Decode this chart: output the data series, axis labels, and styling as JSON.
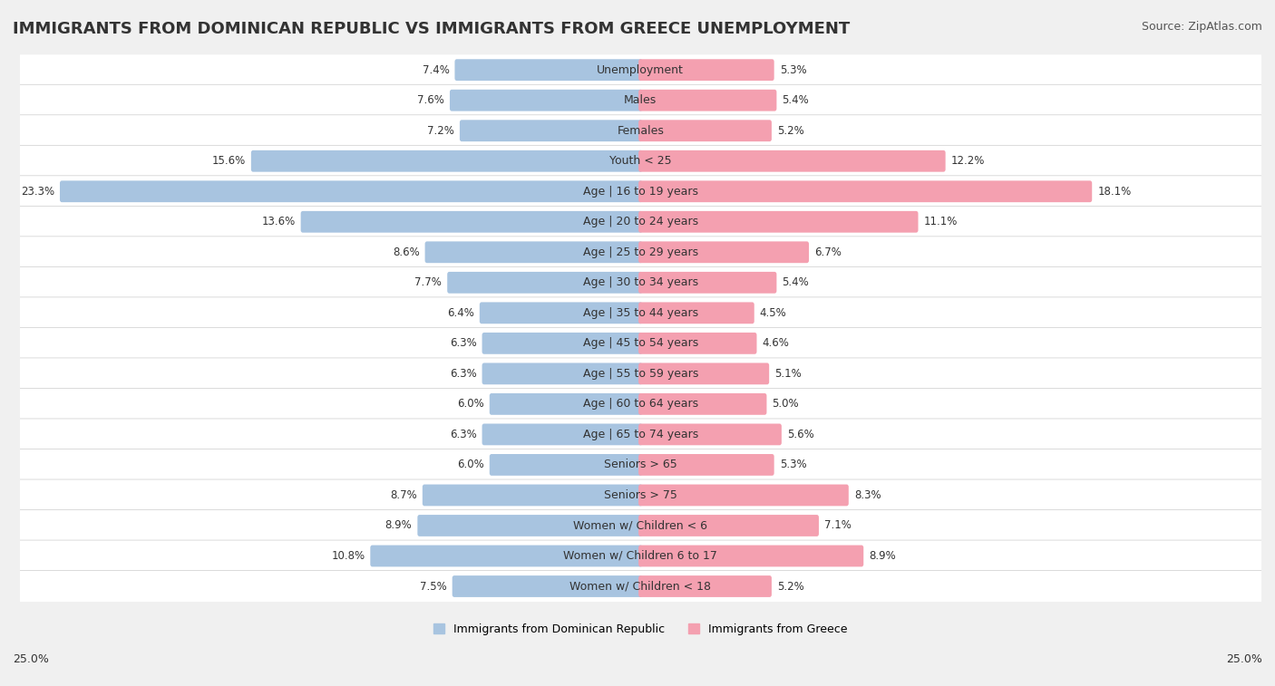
{
  "title": "IMMIGRANTS FROM DOMINICAN REPUBLIC VS IMMIGRANTS FROM GREECE UNEMPLOYMENT",
  "source": "Source: ZipAtlas.com",
  "categories": [
    "Unemployment",
    "Males",
    "Females",
    "Youth < 25",
    "Age | 16 to 19 years",
    "Age | 20 to 24 years",
    "Age | 25 to 29 years",
    "Age | 30 to 34 years",
    "Age | 35 to 44 years",
    "Age | 45 to 54 years",
    "Age | 55 to 59 years",
    "Age | 60 to 64 years",
    "Age | 65 to 74 years",
    "Seniors > 65",
    "Seniors > 75",
    "Women w/ Children < 6",
    "Women w/ Children 6 to 17",
    "Women w/ Children < 18"
  ],
  "left_values": [
    7.4,
    7.6,
    7.2,
    15.6,
    23.3,
    13.6,
    8.6,
    7.7,
    6.4,
    6.3,
    6.3,
    6.0,
    6.3,
    6.0,
    8.7,
    8.9,
    10.8,
    7.5
  ],
  "right_values": [
    5.3,
    5.4,
    5.2,
    12.2,
    18.1,
    11.1,
    6.7,
    5.4,
    4.5,
    4.6,
    5.1,
    5.0,
    5.6,
    5.3,
    8.3,
    7.1,
    8.9,
    5.2
  ],
  "left_color": "#a8c4e0",
  "right_color": "#f4a0b0",
  "left_label": "Immigrants from Dominican Republic",
  "right_label": "Immigrants from Greece",
  "axis_max": 25.0,
  "background_color": "#f0f0f0",
  "row_bg_color": "#ffffff",
  "title_fontsize": 13,
  "source_fontsize": 9,
  "label_fontsize": 9,
  "value_fontsize": 8.5
}
